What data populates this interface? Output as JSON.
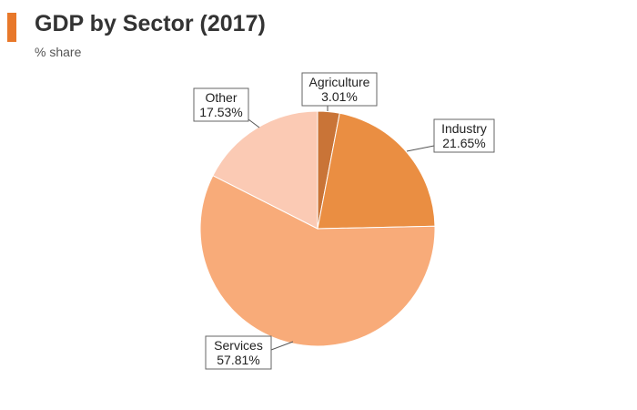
{
  "header": {
    "title": "GDP by Sector (2017)",
    "subtitle": "% share",
    "accent_color": "#E8782A"
  },
  "chart_data": {
    "type": "pie",
    "title": "GDP by Sector (2017)",
    "subtitle": "% share",
    "slices": [
      {
        "name": "Agriculture",
        "value": 3.01,
        "label": "3.01%",
        "color": "#C97437"
      },
      {
        "name": "Industry",
        "value": 21.65,
        "label": "21.65%",
        "color": "#EA8E42"
      },
      {
        "name": "Services",
        "value": 57.81,
        "label": "57.81%",
        "color": "#F8AB79"
      },
      {
        "name": "Other",
        "value": 17.53,
        "label": "17.53%",
        "color": "#FBCAB4"
      }
    ],
    "legend": "none"
  }
}
